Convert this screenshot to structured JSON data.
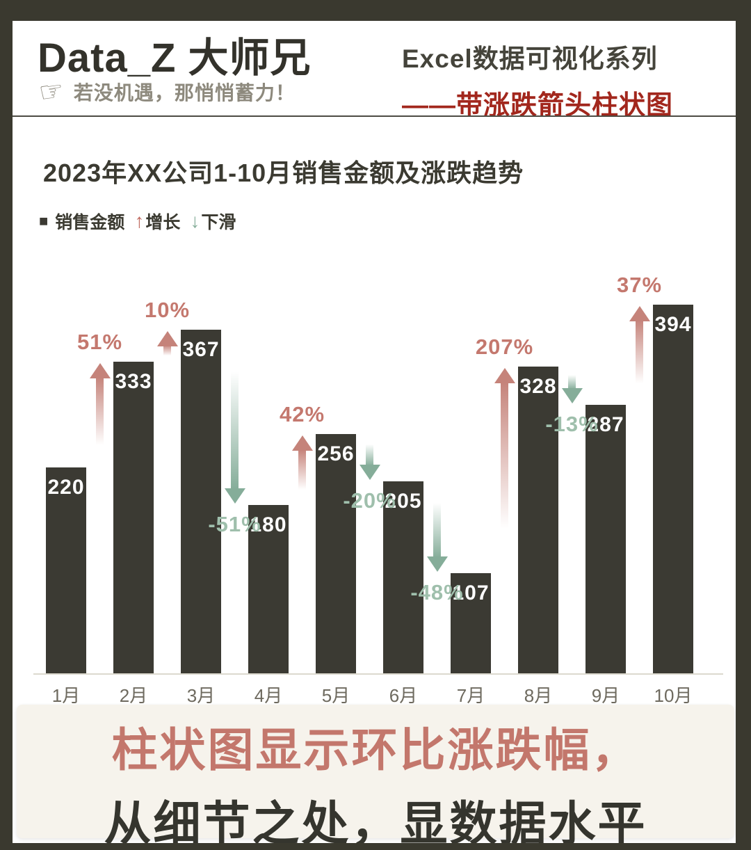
{
  "header": {
    "brand": "Data_Z 大师兄",
    "hand_icon": "☞",
    "tagline": "若没机遇，那悄悄蓄力！",
    "series_title": "Excel数据可视化系列",
    "series_subtitle": "——带涨跌箭头柱状图",
    "series_subtitle_color": "#a2271d"
  },
  "chart": {
    "title": "2023年XX公司1-10月销售金额及涨跌趋势",
    "legend": {
      "bar_swatch": "■",
      "bar_label": "销售金额",
      "up_icon": "↑",
      "up_label": "增长",
      "down_icon": "↓",
      "down_label": "下滑"
    }
  },
  "chart_data": {
    "type": "bar",
    "title": "2023年XX公司1-10月销售金额及涨跌趋势",
    "series_name": "销售金额",
    "categories": [
      "1月",
      "2月",
      "3月",
      "4月",
      "5月",
      "6月",
      "7月",
      "8月",
      "9月",
      "10月"
    ],
    "values": [
      220,
      333,
      367,
      180,
      256,
      205,
      107,
      328,
      287,
      394
    ],
    "changes": [
      {
        "pct": "51%",
        "dir": "up"
      },
      {
        "pct": "10%",
        "dir": "up"
      },
      {
        "pct": "-51%",
        "dir": "down"
      },
      {
        "pct": "42%",
        "dir": "up"
      },
      {
        "pct": "-20%",
        "dir": "down"
      },
      {
        "pct": "-48%",
        "dir": "down"
      },
      {
        "pct": "207%",
        "dir": "up"
      },
      {
        "pct": "-13%",
        "dir": "down"
      },
      {
        "pct": "37%",
        "dir": "up"
      }
    ],
    "xlabel": "",
    "ylabel": "",
    "grid": false,
    "legend_position": "top-left",
    "colors": {
      "bar": "#3b3a33",
      "bar_value_text": "#ffffff",
      "up_arrow": "#c5837a",
      "up_text": "#c4786e",
      "down_arrow": "#85ad99",
      "down_text": "#9fbfac",
      "axis_line": "#dcd9ce",
      "month_text": "#6e6a5f"
    }
  },
  "footer": {
    "line1": "柱状图显示环比涨跌幅，",
    "line2": "从细节之处，显数据水平",
    "line1_color": "#c3776c",
    "line2_color": "#35352e",
    "background": "#f6f3ec"
  }
}
